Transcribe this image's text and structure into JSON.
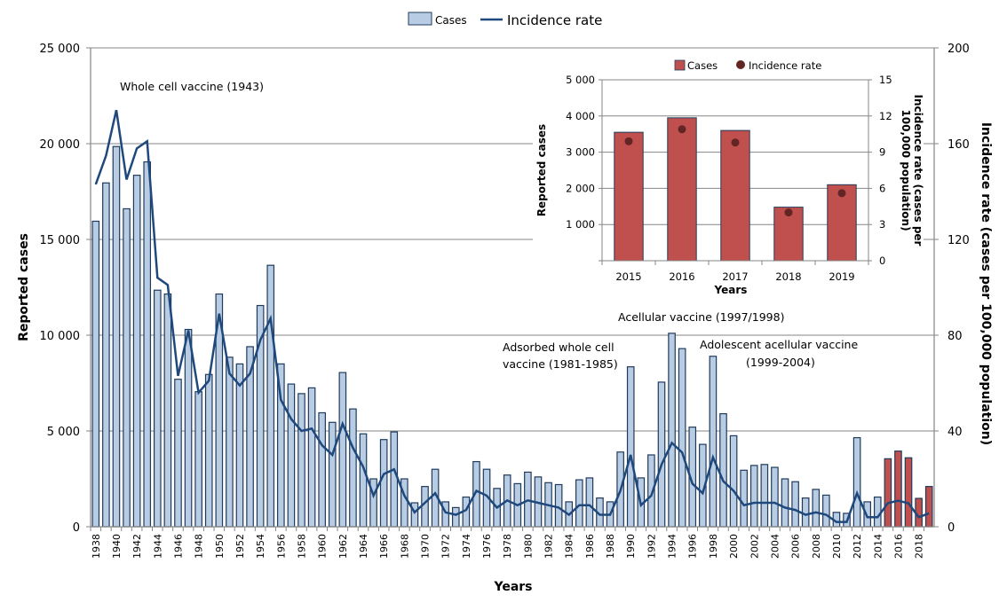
{
  "chart_data": {
    "type": "bar",
    "main": {
      "title": "",
      "xlabel": "Years",
      "ylabel": "Reported cases",
      "y2label": "Incidence rate (cases per 100,000 population)",
      "ylim": [
        0,
        25000
      ],
      "y2lim": [
        0,
        200
      ],
      "yticks": [
        "0",
        "5 000",
        "10 000",
        "15 000",
        "20 000",
        "25 000"
      ],
      "y2ticks": [
        "0",
        "40",
        "80",
        "120",
        "160",
        "200"
      ],
      "grid": true,
      "legend": {
        "position": "top-center",
        "entries": [
          "Cases",
          "Incidence rate"
        ]
      },
      "years": [
        1938,
        1939,
        1940,
        1941,
        1942,
        1943,
        1944,
        1945,
        1946,
        1947,
        1948,
        1949,
        1950,
        1951,
        1952,
        1953,
        1954,
        1955,
        1956,
        1957,
        1958,
        1959,
        1960,
        1961,
        1962,
        1963,
        1964,
        1965,
        1966,
        1967,
        1968,
        1969,
        1970,
        1971,
        1972,
        1973,
        1974,
        1975,
        1976,
        1977,
        1978,
        1979,
        1980,
        1981,
        1982,
        1983,
        1984,
        1985,
        1986,
        1987,
        1988,
        1989,
        1990,
        1991,
        1992,
        1993,
        1994,
        1995,
        1996,
        1997,
        1998,
        1999,
        2000,
        2001,
        2002,
        2003,
        2004,
        2005,
        2006,
        2007,
        2008,
        2009,
        2010,
        2011,
        2012,
        2013,
        2014,
        2015,
        2016,
        2017,
        2018,
        2019
      ],
      "series": [
        {
          "name": "Cases",
          "type": "bar",
          "color": "#b8cce4",
          "highlight_color": "#c0504d",
          "highlight_from": 2015,
          "values": [
            15950,
            17950,
            19850,
            16600,
            18350,
            19050,
            12350,
            12150,
            7700,
            10300,
            7050,
            7950,
            12150,
            8850,
            8500,
            9400,
            11550,
            13650,
            8500,
            7450,
            6950,
            7250,
            5950,
            5450,
            8050,
            6150,
            4850,
            2500,
            4550,
            4950,
            2500,
            1250,
            2100,
            3000,
            1300,
            1000,
            1550,
            3400,
            3000,
            2000,
            2700,
            2250,
            2850,
            2600,
            2300,
            2200,
            1300,
            2450,
            2550,
            1500,
            1300,
            3900,
            8350,
            2550,
            3750,
            7550,
            10100,
            9300,
            5200,
            4300,
            8900,
            5900,
            4750,
            2950,
            3200,
            3250,
            3100,
            2500,
            2350,
            1500,
            1950,
            1650,
            750,
            700,
            4650,
            1300,
            1550,
            3550,
            3950,
            3600,
            1480,
            2100
          ]
        },
        {
          "name": "Incidence rate",
          "type": "line",
          "axis": "right",
          "color": "#1f497d",
          "values": [
            143,
            155,
            174,
            145,
            158,
            161,
            104,
            101,
            63,
            82,
            56,
            61,
            89,
            64,
            59,
            64,
            78,
            87,
            53,
            45,
            40,
            41,
            34,
            30,
            43,
            33,
            25,
            13,
            22,
            24,
            13,
            6,
            10,
            14,
            6,
            5,
            7,
            15,
            13,
            8,
            11,
            9,
            11,
            10,
            9,
            8,
            5,
            9,
            9,
            5,
            5,
            15,
            30,
            9,
            13,
            26,
            35,
            31,
            18,
            14,
            29,
            19,
            15,
            9,
            10,
            10,
            10,
            8,
            7,
            5,
            6,
            5,
            2,
            2,
            14,
            4,
            4,
            9.9,
            10.9,
            9.8,
            4.0,
            5.6
          ]
        }
      ],
      "annotations": [
        {
          "text": "Whole cell vaccine (1943)"
        },
        {
          "text": "Acellular vaccine (1997/1998)"
        },
        {
          "text": "Adsorbed whole cell"
        },
        {
          "text": "vaccine (1981-1985)"
        },
        {
          "text": "Adolescent acellular vaccine"
        },
        {
          "text": "(1999-2004)"
        }
      ]
    },
    "inset": {
      "type": "bar",
      "xlabel": "Years",
      "ylabel": "Reported cases",
      "y2label_line1": "Incidence rate (cases per",
      "y2label_line2": "100,000 population)",
      "ylim": [
        0,
        5000
      ],
      "y2lim": [
        0,
        15
      ],
      "yticks": [
        "",
        "1 000",
        "2 000",
        "3 000",
        "4 000",
        "5 000"
      ],
      "y2ticks": [
        "0",
        "3",
        "6",
        "9",
        "12",
        "15"
      ],
      "grid": true,
      "legend": {
        "position": "top",
        "entries": [
          "Cases",
          "Incidence rate"
        ]
      },
      "categories": [
        "2015",
        "2016",
        "2017",
        "2018",
        "2019"
      ],
      "series": [
        {
          "name": "Cases",
          "type": "bar",
          "color": "#c0504d",
          "values": [
            3550,
            3950,
            3600,
            1480,
            2100
          ]
        },
        {
          "name": "Incidence rate",
          "type": "scatter",
          "axis": "right",
          "color": "#632523",
          "values": [
            9.9,
            10.9,
            9.8,
            4.0,
            5.6
          ]
        }
      ]
    }
  }
}
